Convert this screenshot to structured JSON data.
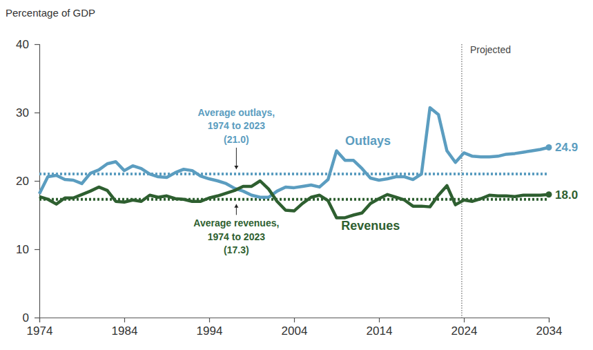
{
  "chart_data": {
    "type": "line",
    "y_label": "Percentage of GDP",
    "x": [
      1974,
      1975,
      1976,
      1977,
      1978,
      1979,
      1980,
      1981,
      1982,
      1983,
      1984,
      1985,
      1986,
      1987,
      1988,
      1989,
      1990,
      1991,
      1992,
      1993,
      1994,
      1995,
      1996,
      1997,
      1998,
      1999,
      2000,
      2001,
      2002,
      2003,
      2004,
      2005,
      2006,
      2007,
      2008,
      2009,
      2010,
      2011,
      2012,
      2013,
      2014,
      2015,
      2016,
      2017,
      2018,
      2019,
      2020,
      2021,
      2022,
      2023,
      2024,
      2025,
      2026,
      2027,
      2028,
      2029,
      2030,
      2031,
      2032,
      2033,
      2034
    ],
    "series": [
      {
        "name": "Outlays",
        "color": "#5b9dc0",
        "marker": "last",
        "values": [
          18.1,
          20.6,
          20.8,
          20.2,
          20.1,
          19.6,
          21.1,
          21.6,
          22.5,
          22.8,
          21.5,
          22.2,
          21.8,
          21.0,
          20.6,
          20.5,
          21.2,
          21.7,
          21.5,
          20.7,
          20.3,
          20.0,
          19.6,
          18.9,
          18.5,
          17.9,
          17.6,
          17.6,
          18.5,
          19.1,
          19.0,
          19.2,
          19.4,
          19.1,
          20.2,
          24.4,
          23.0,
          23.0,
          21.8,
          20.4,
          20.1,
          20.3,
          20.6,
          20.6,
          20.2,
          21.0,
          30.7,
          29.7,
          24.4,
          22.7,
          24.1,
          23.6,
          23.5,
          23.5,
          23.6,
          23.9,
          24.0,
          24.2,
          24.4,
          24.6,
          24.9
        ]
      },
      {
        "name": "Revenues",
        "color": "#2e5f30",
        "marker": "last",
        "values": [
          17.7,
          17.3,
          16.6,
          17.5,
          17.5,
          18.0,
          18.5,
          19.1,
          18.6,
          17.0,
          16.9,
          17.2,
          17.0,
          17.9,
          17.6,
          17.8,
          17.4,
          17.3,
          17.0,
          17.0,
          17.5,
          17.8,
          18.2,
          18.6,
          19.2,
          19.2,
          20.0,
          18.8,
          17.0,
          15.7,
          15.6,
          16.7,
          17.6,
          17.9,
          17.1,
          14.6,
          14.6,
          15.0,
          15.3,
          16.7,
          17.4,
          18.0,
          17.6,
          17.2,
          16.3,
          16.3,
          16.2,
          17.9,
          19.3,
          16.5,
          17.2,
          17.0,
          17.4,
          17.9,
          17.8,
          17.8,
          17.7,
          17.9,
          17.9,
          17.9,
          18.0
        ]
      }
    ],
    "xlim": [
      1974,
      2034
    ],
    "xticks": [
      1974,
      1984,
      1994,
      2004,
      2014,
      2024,
      2034
    ],
    "ylim": [
      0,
      40
    ],
    "yticks": [
      0,
      10,
      20,
      30,
      40
    ],
    "grid": false,
    "reference_lines": [
      {
        "value": 21.0,
        "color": "#5b9dc0",
        "line_style": "dotted",
        "label": [
          "Average outlays,",
          "1974 to 2023",
          "(21.0)"
        ],
        "label_x": 1997.2,
        "label_y": 29.5
      },
      {
        "value": 17.3,
        "color": "#2e5f30",
        "line_style": "dotted",
        "label": [
          "Average revenues,",
          "1974 to 2023",
          "(17.3)"
        ],
        "label_x": 1997.2,
        "label_y": 13.3
      }
    ],
    "projection": {
      "label": "Projected",
      "x": 2023.75
    },
    "annotations": [
      {
        "text": "Outlays",
        "x": 2012.7,
        "y": 25.3,
        "color": "#5b9dc0"
      },
      {
        "text": "Revenues",
        "x": 2013.0,
        "y": 12.8,
        "color": "#2e5f30"
      },
      {
        "text": "24.9",
        "x": 2034,
        "y": 24.9,
        "color": "#5b9dc0"
      },
      {
        "text": "18.0",
        "x": 2034,
        "y": 18.0,
        "color": "#2e5f30"
      }
    ]
  }
}
